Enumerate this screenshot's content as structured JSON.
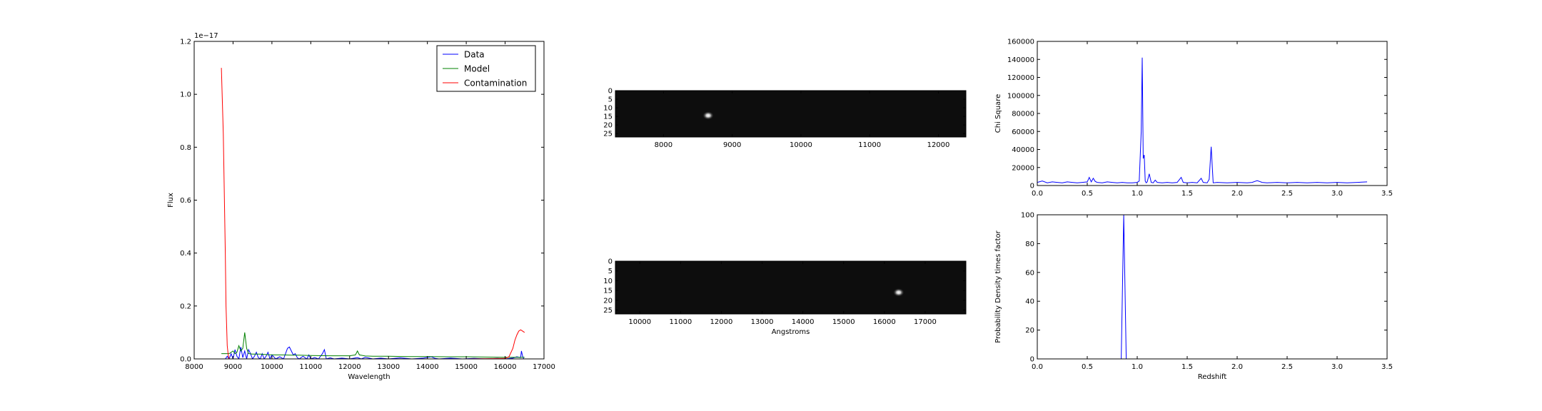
{
  "chart_data": [
    {
      "type": "line",
      "xlabel": "Wavelength",
      "ylabel": "Flux",
      "offset_label": "1e−17",
      "xlim": [
        8000,
        17000
      ],
      "ylim": [
        0,
        1.2
      ],
      "xticks": [
        8000,
        9000,
        10000,
        11000,
        12000,
        13000,
        14000,
        15000,
        16000,
        17000
      ],
      "yticks": [
        "0.0",
        "0.2",
        "0.4",
        "0.6",
        "0.8",
        "1.0",
        "1.2"
      ],
      "ytick_values": [
        0,
        0.2,
        0.4,
        0.6,
        0.8,
        1.0,
        1.2
      ],
      "legend_position": "top-right",
      "grid": false,
      "series": [
        {
          "name": "Data",
          "color": "#0000ff",
          "x": [
            8800,
            8850,
            8900,
            8950,
            9000,
            9050,
            9100,
            9150,
            9200,
            9250,
            9300,
            9350,
            9400,
            9450,
            9500,
            9550,
            9600,
            9650,
            9700,
            9750,
            9800,
            9850,
            9900,
            9950,
            10000,
            10100,
            10200,
            10300,
            10400,
            10450,
            10500,
            10550,
            10600,
            10650,
            10700,
            10800,
            10900,
            10950,
            11000,
            11100,
            11200,
            11300,
            11350,
            11400,
            11500,
            11600,
            11800,
            12000,
            12200,
            12300,
            12400,
            12600,
            12800,
            13000,
            13300,
            13600,
            13900,
            14100,
            14200,
            14300,
            14600,
            14900,
            15200,
            15500,
            15800,
            16000,
            16200,
            16300,
            16400,
            16420,
            16450,
            16480
          ],
          "y": [
            0.0,
            0.01,
            0.0,
            0.02,
            0.0,
            0.035,
            0.01,
            0.0,
            0.045,
            0.005,
            0.03,
            0.0,
            0.035,
            0.02,
            0.0,
            0.01,
            0.025,
            0.005,
            0.0,
            0.02,
            0.0,
            0.01,
            0.025,
            0.0,
            0.015,
            0.0,
            0.008,
            0.0,
            0.04,
            0.045,
            0.03,
            0.015,
            0.02,
            0.005,
            0.0,
            0.01,
            0.0,
            0.015,
            0.0,
            0.005,
            0.0,
            0.02,
            0.035,
            0.0,
            0.004,
            0.0,
            0.003,
            0.0,
            0.005,
            0.0,
            0.006,
            0.0,
            0.003,
            0.0,
            0.004,
            0.0,
            0.003,
            0.008,
            0.002,
            0.0,
            0.003,
            0.0,
            0.002,
            0.0,
            0.002,
            0.0,
            0.003,
            0.008,
            0.005,
            0.03,
            0.01,
            0.0
          ]
        },
        {
          "name": "Model",
          "color": "#008000",
          "x": [
            8700,
            8900,
            9000,
            9050,
            9100,
            9150,
            9200,
            9250,
            9300,
            9350,
            9400,
            9500,
            9700,
            9900,
            10100,
            10300,
            10500,
            10700,
            11000,
            11500,
            12000,
            12150,
            12200,
            12250,
            12400,
            12600,
            13000,
            13500,
            14000,
            14500,
            15000,
            15500,
            16000,
            16500
          ],
          "y": [
            0.02,
            0.02,
            0.03,
            0.02,
            0.025,
            0.05,
            0.03,
            0.04,
            0.1,
            0.04,
            0.02,
            0.018,
            0.018,
            0.016,
            0.015,
            0.015,
            0.014,
            0.014,
            0.013,
            0.012,
            0.012,
            0.015,
            0.03,
            0.015,
            0.011,
            0.01,
            0.01,
            0.009,
            0.009,
            0.008,
            0.008,
            0.007,
            0.006,
            0.006
          ]
        },
        {
          "name": "Contamination",
          "color": "#ff0000",
          "x": [
            8700,
            8750,
            8800,
            8820,
            8850,
            8880,
            8900,
            9000,
            10000,
            12000,
            14000,
            15000,
            16000,
            16100,
            16200,
            16250,
            16300,
            16350,
            16400,
            16450,
            16500
          ],
          "y": [
            1.1,
            0.85,
            0.4,
            0.2,
            0.05,
            0.01,
            0.0,
            0.0,
            0.0,
            0.0,
            0.0,
            0.0,
            0.002,
            0.008,
            0.04,
            0.07,
            0.09,
            0.105,
            0.11,
            0.105,
            0.1
          ]
        }
      ]
    },
    {
      "type": "heatmap",
      "xlim": [
        7300,
        12400
      ],
      "ylim": [
        0,
        27
      ],
      "xticks": [
        8000,
        9000,
        10000,
        11000,
        12000
      ],
      "yticks": [
        0,
        5,
        10,
        15,
        20,
        25
      ],
      "sources": [
        {
          "x": 8650,
          "y": 14.5,
          "intensity": 1.0
        }
      ]
    },
    {
      "type": "heatmap",
      "xlabel": "Angstroms",
      "xlim": [
        9400,
        18000
      ],
      "ylim": [
        0,
        27
      ],
      "xticks": [
        10000,
        11000,
        12000,
        13000,
        14000,
        15000,
        16000,
        17000
      ],
      "yticks": [
        0,
        5,
        10,
        15,
        20,
        25
      ],
      "sources": [
        {
          "x": 16350,
          "y": 16,
          "intensity": 1.0
        }
      ]
    },
    {
      "type": "line",
      "ylabel": "Chi Square",
      "xlim": [
        0,
        3.5
      ],
      "ylim": [
        0,
        160000
      ],
      "xticks": [
        "0.0",
        "0.5",
        "1.0",
        "1.5",
        "2.0",
        "2.5",
        "3.0",
        "3.5"
      ],
      "xtick_values": [
        0,
        0.5,
        1.0,
        1.5,
        2.0,
        2.5,
        3.0,
        3.5
      ],
      "yticks": [
        "0",
        "20000",
        "40000",
        "60000",
        "80000",
        "100000",
        "120000",
        "140000",
        "160000"
      ],
      "ytick_values": [
        0,
        20000,
        40000,
        60000,
        80000,
        100000,
        120000,
        140000,
        160000
      ],
      "series": [
        {
          "color": "#0000ff",
          "x": [
            0.0,
            0.05,
            0.1,
            0.15,
            0.2,
            0.25,
            0.3,
            0.35,
            0.4,
            0.45,
            0.5,
            0.52,
            0.54,
            0.56,
            0.58,
            0.6,
            0.65,
            0.7,
            0.75,
            0.8,
            0.85,
            0.9,
            0.95,
            1.0,
            1.02,
            1.04,
            1.05,
            1.06,
            1.07,
            1.08,
            1.09,
            1.1,
            1.12,
            1.14,
            1.16,
            1.18,
            1.2,
            1.25,
            1.3,
            1.35,
            1.4,
            1.44,
            1.46,
            1.5,
            1.55,
            1.6,
            1.64,
            1.66,
            1.7,
            1.72,
            1.74,
            1.76,
            1.8,
            1.9,
            2.0,
            2.1,
            2.15,
            2.2,
            2.25,
            2.3,
            2.4,
            2.5,
            2.6,
            2.7,
            2.8,
            2.9,
            3.0,
            3.1,
            3.2,
            3.3
          ],
          "y": [
            3500,
            5000,
            3000,
            4000,
            3500,
            3000,
            4000,
            3500,
            3000,
            3500,
            4000,
            9000,
            4000,
            8000,
            4500,
            3500,
            3000,
            4000,
            3500,
            3000,
            3500,
            3000,
            3000,
            3500,
            5000,
            60000,
            142000,
            30000,
            34000,
            5000,
            3000,
            4000,
            13000,
            3500,
            3000,
            6000,
            3500,
            3000,
            3500,
            3000,
            3500,
            9000,
            3500,
            3000,
            3500,
            3000,
            8000,
            3500,
            3000,
            7000,
            43000,
            3000,
            3500,
            3000,
            3500,
            3000,
            3500,
            5500,
            3500,
            3000,
            3500,
            3000,
            3500,
            3000,
            3500,
            3000,
            3500,
            3000,
            3500,
            4000
          ]
        }
      ]
    },
    {
      "type": "line",
      "xlabel": "Redshift",
      "ylabel": "Probability Density times factor",
      "xlim": [
        0,
        3.5
      ],
      "ylim": [
        0,
        100
      ],
      "xticks": [
        "0.0",
        "0.5",
        "1.0",
        "1.5",
        "2.0",
        "2.5",
        "3.0",
        "3.5"
      ],
      "xtick_values": [
        0,
        0.5,
        1.0,
        1.5,
        2.0,
        2.5,
        3.0,
        3.5
      ],
      "yticks": [
        "0",
        "20",
        "40",
        "60",
        "80",
        "100"
      ],
      "ytick_values": [
        0,
        20,
        40,
        60,
        80,
        100
      ],
      "series": [
        {
          "color": "#0000ff",
          "x": [
            0.0,
            0.84,
            0.855,
            0.865,
            0.875,
            0.89,
            3.3
          ],
          "y": [
            0,
            0,
            60,
            100,
            60,
            0,
            0
          ]
        }
      ]
    }
  ]
}
